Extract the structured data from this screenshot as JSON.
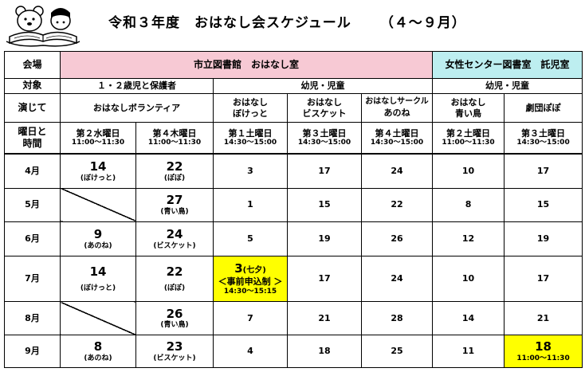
{
  "title": {
    "main": "令和３年度　おはなし会スケジュール",
    "range": "（４～９月）"
  },
  "header": {
    "venue_label": "会場",
    "venue_a": "市立図書館　おはなし室",
    "venue_b": "女性センター図書室　託児室",
    "target_label": "対象",
    "target_a": "１・２歳児と保護者",
    "target_b": "幼児・児童",
    "target_c": "幼児・児童",
    "performer_label": "演じて",
    "performer_a": "おはなしボランティア",
    "performers": [
      {
        "l1": "おはなし",
        "l2": "ぼけっと"
      },
      {
        "l1": "おはなし",
        "l2": "ビスケット"
      },
      {
        "l1": "おはなしサークル",
        "l2": "あのね"
      },
      {
        "l1": "おはなし",
        "l2": "青い鳥"
      },
      {
        "l1": "劇団ぽぽ",
        "l2": ""
      }
    ],
    "day_label_1": "曜日と",
    "day_label_2": "時間",
    "days": [
      {
        "day": "第２水曜日",
        "time": "11:00～11:30"
      },
      {
        "day": "第４木曜日",
        "time": "11:00～11:30"
      },
      {
        "day": "第１土曜日",
        "time": "14:30～15:00"
      },
      {
        "day": "第３土曜日",
        "time": "14:30～15:00"
      },
      {
        "day": "第４土曜日",
        "time": "14:30～15:00"
      },
      {
        "day": "第２土曜日",
        "time": "11:00～11:30"
      },
      {
        "day": "第３土曜日",
        "time": "14:30～15:00"
      }
    ]
  },
  "months": [
    {
      "label": "4月",
      "c1": {
        "num": "14",
        "sub": "(ぼけっと)"
      },
      "c2": {
        "num": "22",
        "sub": "(ぽぽ)"
      },
      "c3": "3",
      "c4": "17",
      "c5": "24",
      "c6": "10",
      "c7": "17"
    },
    {
      "label": "5月",
      "c2": {
        "num": "27",
        "sub": "(青い鳥)"
      },
      "c3": "1",
      "c4": "15",
      "c5": "22",
      "c6": "8",
      "c7": "15"
    },
    {
      "label": "6月",
      "c1": {
        "num": "9",
        "sub": "(あのね)"
      },
      "c2": {
        "num": "24",
        "sub": "(ビスケット)"
      },
      "c3": "5",
      "c4": "19",
      "c5": "26",
      "c6": "12",
      "c7": "19"
    },
    {
      "label": "7月",
      "c1": {
        "num": "14",
        "sub": "(ぼけっと)"
      },
      "c2": {
        "num": "22",
        "sub": "(ぽぽ)"
      },
      "c3": {
        "num": "3",
        "note": "(七夕)",
        "extra": "＜事前申込制 ＞",
        "time": "14:30～15:15"
      },
      "c4": "17",
      "c5": "24",
      "c6": "10",
      "c7": "17"
    },
    {
      "label": "8月",
      "c2": {
        "num": "26",
        "sub": "(青い鳥)"
      },
      "c3": "7",
      "c4": "21",
      "c5": "28",
      "c6": "14",
      "c7": "21"
    },
    {
      "label": "9月",
      "c1": {
        "num": "8",
        "sub": "(あのね)"
      },
      "c2": {
        "num": "23",
        "sub": "(ビスケット)"
      },
      "c3": "4",
      "c4": "18",
      "c5": "25",
      "c6": "11",
      "c7": {
        "num": "18",
        "time": "11:00～11:30"
      }
    }
  ],
  "colors": {
    "venue_a_bg": "#f7c9d4",
    "venue_b_bg": "#bdeef0",
    "highlight": "#ffff00"
  }
}
